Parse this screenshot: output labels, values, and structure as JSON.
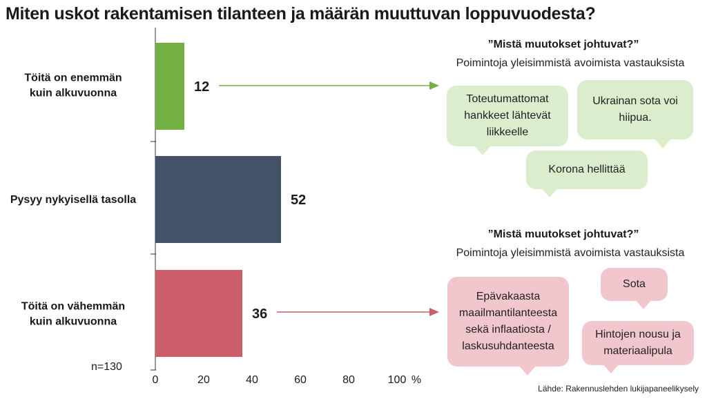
{
  "title": "Miten uskot rakentamisen tilanteen ja määrän muuttuvan loppuvuodesta?",
  "chart_data": {
    "type": "bar",
    "orientation": "horizontal",
    "categories": [
      "Töitä on enemmän\nkuin alkuvuonna",
      "Pysyy nykyisellä tasolla",
      "Töitä on vähemmän\nkuin alkuvuonna"
    ],
    "values": [
      12,
      52,
      36
    ],
    "xlim": [
      0,
      100
    ],
    "xticks": [
      "0",
      "20",
      "40",
      "60",
      "80",
      "100"
    ],
    "x_unit": "%",
    "colors": [
      "#72b043",
      "#435268",
      "#cc5d6b"
    ],
    "grid": false
  },
  "sample_size": "n=130",
  "panels": [
    {
      "heading": "”Mistä muutokset johtuvat?”",
      "subheading": "Poimintoja yleisimmistä avoimista vastauksista",
      "bubbles": [
        "Toteutumattomat hankkeet lähtevät liikkeelle",
        "Ukrainan sota voi hiipua.",
        "Korona hellittää"
      ]
    },
    {
      "heading": "”Mistä muutokset johtuvat?”",
      "subheading": "Poimintoja yleisimmistä avoimista vastauksista",
      "bubbles": [
        "Epävakaasta maailmantilanteesta sekä inflaatiosta / laskusuhdanteesta",
        "Sota",
        "Hintojen nousu ja materiaalipula"
      ]
    }
  ],
  "arrow_colors": [
    "#72b043",
    "#cc5d6b"
  ],
  "source": "Lähde: Rakennuslehden lukijapaneelikysely"
}
